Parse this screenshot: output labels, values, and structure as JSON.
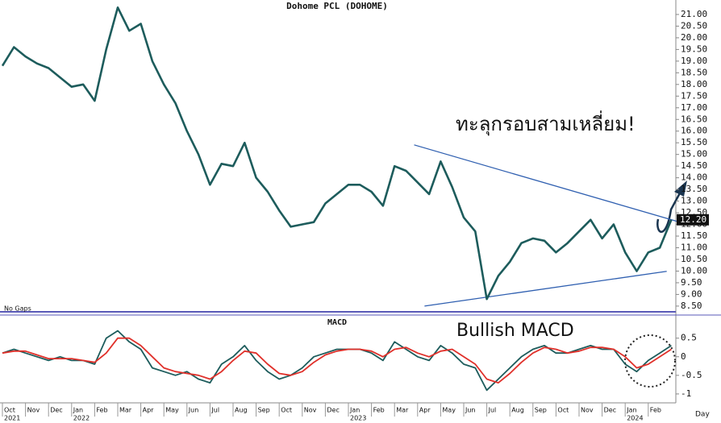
{
  "chart_data": [
    {
      "type": "line",
      "title": "Dohome PCL (DOHOME)",
      "note": "No Gaps",
      "categories": [
        "Oct",
        null,
        "Nov",
        null,
        "Dec",
        null,
        "Jan",
        null,
        "Feb",
        null,
        "Mar",
        null,
        "Apr",
        null,
        "May",
        null,
        "Jun",
        null,
        "Jul",
        null,
        "Aug",
        null,
        "Sep",
        null,
        "Oct",
        null,
        "Nov",
        null,
        "Dec",
        null,
        "Jan",
        null,
        "Feb",
        null,
        "Mar",
        null,
        "Apr",
        null,
        "May",
        null,
        "Jun",
        null,
        "Jul",
        null,
        "Aug",
        null,
        "Sep",
        null,
        "Oct",
        null,
        "Nov",
        null,
        "Dec",
        null,
        "Jan",
        null,
        "Feb",
        null,
        null
      ],
      "years": [
        "2021",
        null,
        null,
        null,
        null,
        null,
        "2022",
        null,
        null,
        null,
        null,
        null,
        null,
        null,
        null,
        null,
        null,
        null,
        null,
        null,
        null,
        null,
        null,
        null,
        null,
        null,
        null,
        null,
        null,
        null,
        "2023",
        null,
        null,
        null,
        null,
        null,
        null,
        null,
        null,
        null,
        null,
        null,
        null,
        null,
        null,
        null,
        null,
        null,
        null,
        null,
        null,
        null,
        null,
        null,
        "2024",
        null,
        null,
        null,
        null
      ],
      "x_unit": "Day",
      "series": [
        {
          "color": "#1d5c5c",
          "values": [
            18.8,
            19.6,
            19.2,
            18.9,
            18.7,
            18.3,
            17.9,
            18.0,
            17.3,
            19.5,
            21.3,
            20.3,
            20.6,
            19.0,
            18.0,
            17.2,
            16.0,
            15.0,
            13.7,
            14.6,
            14.5,
            15.5,
            14.0,
            13.4,
            12.6,
            11.9,
            12.0,
            12.1,
            12.9,
            13.3,
            13.7,
            13.7,
            13.4,
            12.8,
            14.5,
            14.3,
            13.8,
            13.3,
            14.7,
            13.6,
            12.3,
            11.7,
            8.8,
            9.8,
            10.4,
            11.2,
            11.4,
            11.3,
            10.8,
            11.2,
            11.7,
            12.2,
            11.4,
            12.0,
            10.8,
            10.0,
            10.8,
            11.0,
            12.2
          ],
          "last_label": "12.20"
        }
      ],
      "trendlines": [
        {
          "color": "#2f5fb0",
          "x": [
            35.7,
            58.5
          ],
          "y": [
            15.41,
            12.13
          ]
        },
        {
          "color": "#2f5fb0",
          "x": [
            36.6,
            57.6
          ],
          "y": [
            8.5,
            9.99
          ]
        }
      ],
      "annotation": "ทะลุกรอบสามเหลี่ยม!",
      "ylim": [
        8.22,
        21.62
      ],
      "yticks": [
        {
          "value": 8.5,
          "label": "8.50"
        },
        {
          "value": 9,
          "label": "9.00"
        },
        {
          "value": 9.5,
          "label": "9.50"
        },
        {
          "value": 10,
          "label": "10.00"
        },
        {
          "value": 10.5,
          "label": "10.50"
        },
        {
          "value": 11,
          "label": "11.00"
        },
        {
          "value": 11.5,
          "label": "11.50"
        },
        {
          "value": 12,
          "label": "12.00"
        },
        {
          "value": 12.5,
          "label": "12.50"
        },
        {
          "value": 13,
          "label": "13.00"
        },
        {
          "value": 13.5,
          "label": "13.50"
        },
        {
          "value": 14,
          "label": "14.00"
        },
        {
          "value": 14.5,
          "label": "14.50"
        },
        {
          "value": 15,
          "label": "15.00"
        },
        {
          "value": 15.5,
          "label": "15.50"
        },
        {
          "value": 16,
          "label": "16.00"
        },
        {
          "value": 16.5,
          "label": "16.50"
        },
        {
          "value": 17,
          "label": "17.00"
        },
        {
          "value": 17.5,
          "label": "17.50"
        },
        {
          "value": 18,
          "label": "18.00"
        },
        {
          "value": 18.5,
          "label": "18.50"
        },
        {
          "value": 19,
          "label": "19.00"
        },
        {
          "value": 19.5,
          "label": "19.50"
        },
        {
          "value": 20,
          "label": "20.00"
        },
        {
          "value": 20.5,
          "label": "20.50"
        },
        {
          "value": 21,
          "label": "21.00"
        }
      ]
    },
    {
      "type": "line",
      "title": "MACD",
      "annotation": "Bullish MACD",
      "series": [
        {
          "color": "#1d5c5c",
          "values": [
            0.1,
            0.2,
            0.1,
            0.0,
            -0.1,
            0.0,
            -0.1,
            -0.1,
            -0.2,
            0.5,
            0.7,
            0.4,
            0.2,
            -0.3,
            -0.4,
            -0.5,
            -0.4,
            -0.6,
            -0.7,
            -0.2,
            0.0,
            0.3,
            -0.1,
            -0.4,
            -0.6,
            -0.5,
            -0.3,
            0.0,
            0.1,
            0.2,
            0.2,
            0.2,
            0.1,
            -0.1,
            0.4,
            0.2,
            0.0,
            -0.1,
            0.3,
            0.1,
            -0.2,
            -0.3,
            -0.9,
            -0.6,
            -0.3,
            0.0,
            0.2,
            0.3,
            0.1,
            0.1,
            0.2,
            0.3,
            0.2,
            0.2,
            -0.2,
            -0.4,
            -0.1,
            0.1,
            0.3
          ]
        },
        {
          "color": "#e0302a",
          "values": [
            0.1,
            0.15,
            0.15,
            0.05,
            -0.05,
            -0.05,
            -0.05,
            -0.1,
            -0.15,
            0.1,
            0.5,
            0.5,
            0.3,
            0.0,
            -0.3,
            -0.4,
            -0.45,
            -0.5,
            -0.6,
            -0.4,
            -0.1,
            0.15,
            0.1,
            -0.2,
            -0.45,
            -0.5,
            -0.4,
            -0.15,
            0.05,
            0.15,
            0.2,
            0.2,
            0.15,
            0.0,
            0.2,
            0.25,
            0.1,
            0.0,
            0.15,
            0.2,
            0.0,
            -0.2,
            -0.6,
            -0.7,
            -0.45,
            -0.15,
            0.1,
            0.25,
            0.2,
            0.1,
            0.15,
            0.25,
            0.25,
            0.2,
            0.0,
            -0.3,
            -0.2,
            0.0,
            0.2
          ]
        }
      ],
      "ylim": [
        -1.24,
        1.1
      ],
      "yticks": [
        0.5,
        0,
        -0.5,
        -1
      ]
    }
  ]
}
